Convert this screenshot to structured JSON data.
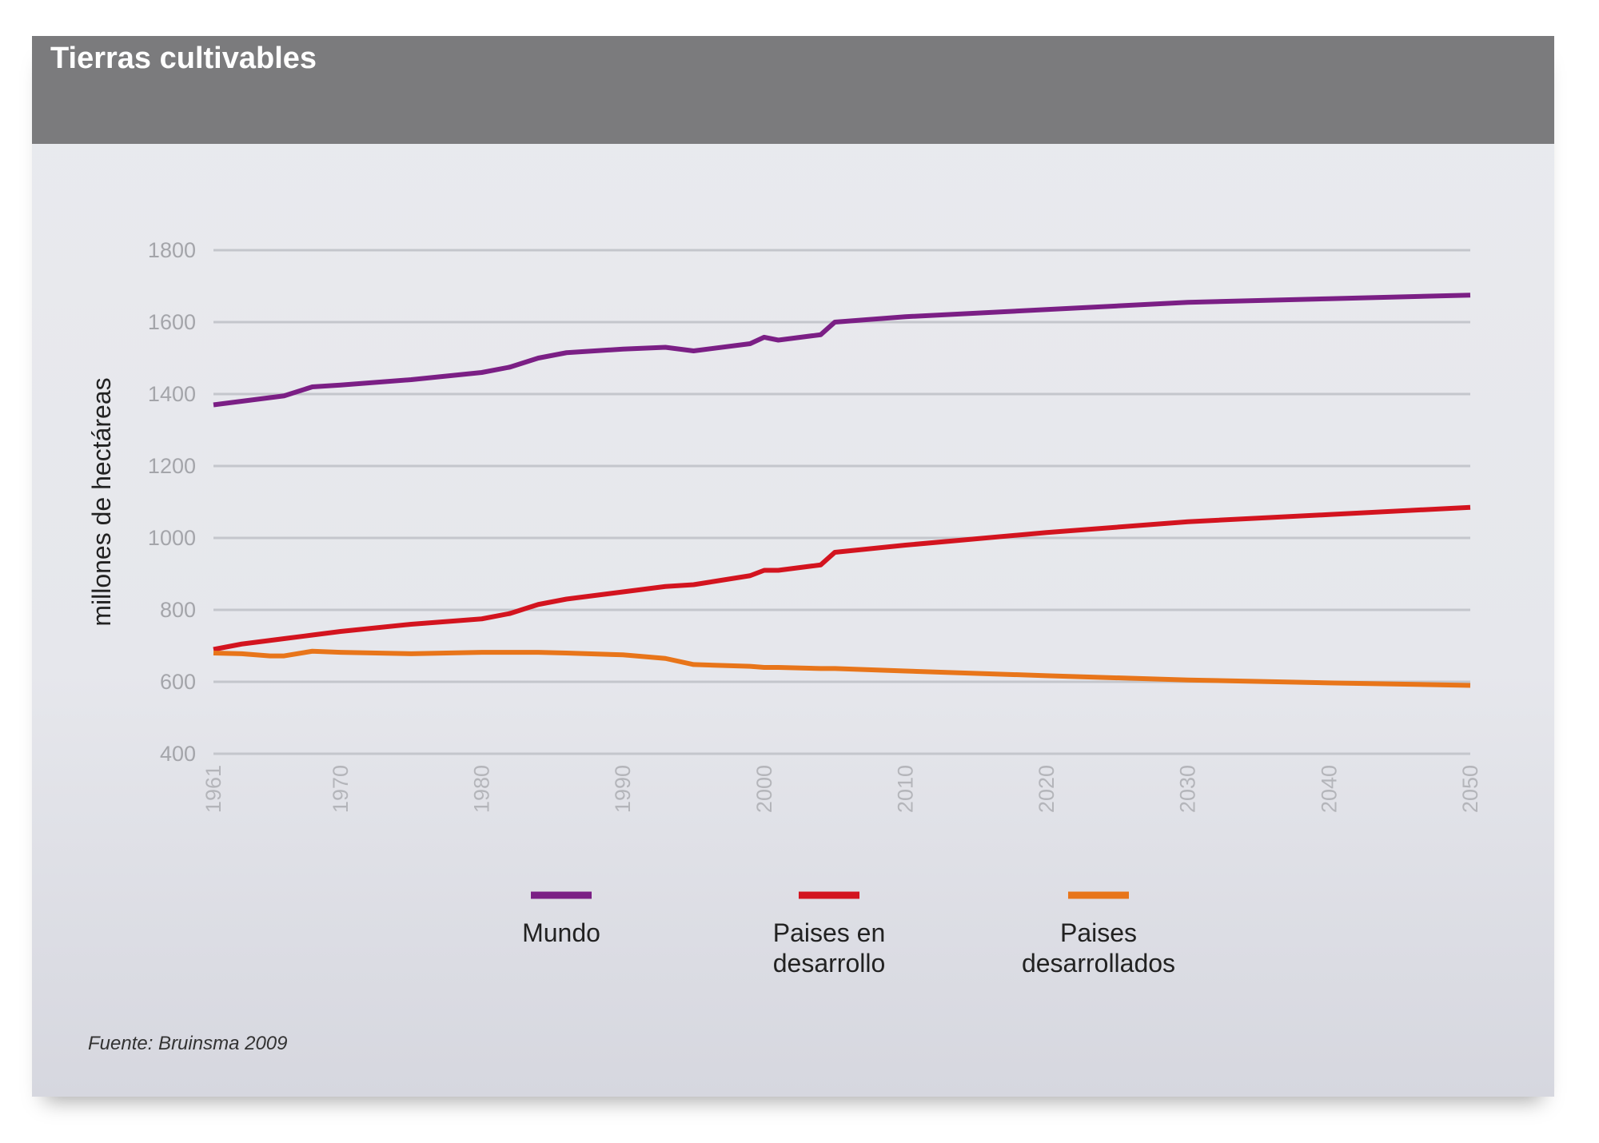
{
  "chart_data": {
    "type": "line",
    "title": "Tierras cultivables",
    "y_label": "millones de hectáreas",
    "source": "Fuente: Bruinsma 2009",
    "x": [
      1961,
      1963,
      1965,
      1966,
      1968,
      1970,
      1975,
      1980,
      1982,
      1984,
      1986,
      1990,
      1993,
      1995,
      1999,
      2000,
      2001,
      2004,
      2005,
      2010,
      2020,
      2030,
      2040,
      2050
    ],
    "series": [
      {
        "name": "Mundo",
        "color": "#7b1f85",
        "values": [
          1370,
          1380,
          1390,
          1395,
          1420,
          1425,
          1440,
          1460,
          1475,
          1500,
          1515,
          1525,
          1530,
          1520,
          1540,
          1558,
          1550,
          1565,
          1600,
          1615,
          1635,
          1655,
          1665,
          1675
        ]
      },
      {
        "name": "Paises en desarrollo",
        "color": "#d3141f",
        "values": [
          690,
          705,
          715,
          720,
          730,
          740,
          760,
          775,
          790,
          815,
          830,
          850,
          865,
          870,
          895,
          910,
          910,
          925,
          960,
          980,
          1015,
          1045,
          1065,
          1085
        ]
      },
      {
        "name": "Paises desarrollados",
        "color": "#e8751a",
        "values": [
          680,
          678,
          672,
          672,
          685,
          682,
          678,
          682,
          682,
          682,
          680,
          675,
          665,
          648,
          643,
          640,
          640,
          637,
          637,
          630,
          617,
          605,
          597,
          590
        ]
      }
    ],
    "xlim": [
      1961,
      2050
    ],
    "xticks": [
      1961,
      1970,
      1980,
      1990,
      2000,
      2010,
      2020,
      2030,
      2040,
      2050
    ],
    "ylim": [
      400,
      1800
    ],
    "yticks": [
      400,
      600,
      800,
      1000,
      1200,
      1400,
      1600,
      1800
    ],
    "grid": true
  }
}
